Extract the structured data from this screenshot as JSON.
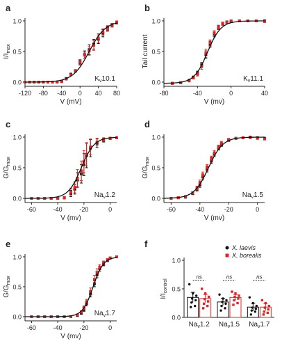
{
  "colors": {
    "black": "#111111",
    "red": "#d62828",
    "axis": "#222222"
  },
  "chart_data": [
    {
      "panel": "a",
      "type": "scatter",
      "title": "Kᵥ 10.1",
      "label_main": "K",
      "label_sub": "v",
      "label_rest": "10.1",
      "xlabel": "V (mV)",
      "ylabel": "I/I",
      "ylabel_sub": "max",
      "xlim": [
        -120,
        80
      ],
      "ylim": [
        0,
        1.0
      ],
      "xticks": [
        "-120",
        "-80",
        "-40",
        "0",
        "40",
        "80"
      ],
      "xtick_values": [
        -120,
        -80,
        -40,
        0,
        40,
        80
      ],
      "yticks": [
        "0.0",
        "0.5",
        "1.0"
      ],
      "ytick_values": [
        0,
        0.5,
        1.0
      ],
      "curve": {
        "type": "boltzmann",
        "v_half": 20,
        "k": 18,
        "bottom": 0,
        "top": 1
      },
      "series": [
        {
          "color": "black",
          "x": [
            -120,
            -110,
            -100,
            -90,
            -80,
            -70,
            -60,
            -50,
            -40,
            -30,
            -20,
            -10,
            0,
            10,
            20,
            30,
            40,
            50,
            60,
            70,
            80
          ],
          "y": [
            0,
            0,
            0,
            0,
            0,
            0,
            0,
            0,
            0.01,
            0.06,
            0.13,
            0.18,
            0.32,
            0.45,
            0.53,
            0.62,
            0.7,
            0.8,
            0.88,
            0.93,
            0.97
          ],
          "err": [
            0,
            0,
            0,
            0,
            0,
            0,
            0,
            0,
            0,
            0,
            0,
            0,
            0.04,
            0.06,
            0.08,
            0.08,
            0.07,
            0.06,
            0.04,
            0.03,
            0.02
          ]
        },
        {
          "color": "red",
          "x": [
            -120,
            -110,
            -100,
            -90,
            -80,
            -70,
            -60,
            -50,
            -40,
            -30,
            -20,
            -10,
            0,
            10,
            20,
            30,
            40,
            50,
            60,
            70,
            80
          ],
          "y": [
            0,
            0,
            0,
            0,
            0,
            0,
            0,
            0,
            0.01,
            0.05,
            0.12,
            0.19,
            0.33,
            0.44,
            0.51,
            0.6,
            0.72,
            0.82,
            0.87,
            0.93,
            0.98
          ],
          "err": [
            0,
            0,
            0,
            0,
            0,
            0,
            0,
            0,
            0,
            0,
            0,
            0,
            0.04,
            0.05,
            0.07,
            0.08,
            0.07,
            0.05,
            0.04,
            0.03,
            0.02
          ]
        }
      ]
    },
    {
      "panel": "b",
      "type": "scatter",
      "label_main": "K",
      "label_sub": "v",
      "label_rest": "11.1",
      "xlabel": "V (mv)",
      "ylabel": "Tail current",
      "ylabel_sub": "",
      "xlim": [
        -80,
        40
      ],
      "ylim": [
        0,
        1.0
      ],
      "xticks": [
        "-80",
        "-40",
        "0",
        "40"
      ],
      "xtick_values": [
        -80,
        -40,
        0,
        40
      ],
      "yticks": [
        "0.0",
        "0.5",
        "1.0"
      ],
      "ytick_values": [
        0,
        0.5,
        1.0
      ],
      "curve": {
        "type": "boltzmann",
        "v_half": -28,
        "k": 8,
        "bottom": -0.02,
        "top": 1
      },
      "series": [
        {
          "color": "black",
          "x": [
            -70,
            -60,
            -50,
            -45,
            -40,
            -35,
            -30,
            -25,
            -20,
            -15,
            -10,
            -5,
            0,
            10,
            20,
            30,
            40
          ],
          "y": [
            -0.02,
            -0.01,
            0.03,
            0.08,
            0.15,
            0.28,
            0.45,
            0.62,
            0.78,
            0.89,
            0.95,
            0.98,
            0.99,
            1.0,
            1.0,
            1.0,
            1.0
          ],
          "err": [
            0.01,
            0.01,
            0.01,
            0.02,
            0.03,
            0.04,
            0.06,
            0.05,
            0.04,
            0.03,
            0.02,
            0.02,
            0.01,
            0.01,
            0,
            0,
            0
          ]
        },
        {
          "color": "red",
          "x": [
            -70,
            -60,
            -50,
            -45,
            -40,
            -35,
            -30,
            -25,
            -20,
            -15,
            -10,
            -5,
            0,
            10,
            20,
            30,
            40
          ],
          "y": [
            -0.02,
            -0.01,
            0.02,
            0.07,
            0.13,
            0.26,
            0.47,
            0.64,
            0.8,
            0.9,
            0.96,
            0.98,
            1.0,
            1.0,
            1.0,
            1.0,
            0.99
          ],
          "err": [
            0.01,
            0.01,
            0.01,
            0.02,
            0.03,
            0.05,
            0.07,
            0.05,
            0.04,
            0.03,
            0.02,
            0.01,
            0.01,
            0.01,
            0,
            0,
            0
          ]
        }
      ]
    },
    {
      "panel": "c",
      "type": "scatter",
      "label_main": "Na",
      "label_sub": "v",
      "label_rest": "1.2",
      "xlabel": "V (mv)",
      "ylabel": "G/G",
      "ylabel_sub": "max",
      "xlim": [
        -65,
        5
      ],
      "ylim": [
        0,
        1.0
      ],
      "xticks": [
        "-60",
        "-40",
        "-20",
        "0"
      ],
      "xtick_values": [
        -60,
        -40,
        -20,
        0
      ],
      "yticks": [
        "0.0",
        "0.5",
        "1.0"
      ],
      "ytick_values": [
        0,
        0.5,
        1.0
      ],
      "curve": {
        "type": "boltzmann",
        "v_half": -22,
        "k": 5,
        "bottom": 0,
        "top": 1
      },
      "series": [
        {
          "color": "black",
          "x": [
            -60,
            -55,
            -50,
            -45,
            -40,
            -35,
            -30,
            -27,
            -25,
            -22,
            -20,
            -18,
            -15,
            -10,
            -5,
            0,
            5
          ],
          "y": [
            0,
            0,
            0,
            0,
            0,
            0.01,
            0.08,
            0.15,
            0.3,
            0.4,
            0.55,
            0.7,
            0.82,
            0.9,
            0.95,
            0.98,
            0.99
          ],
          "err": [
            0,
            0,
            0,
            0,
            0,
            0.02,
            0.05,
            0.08,
            0.12,
            0.15,
            0.18,
            0.2,
            0.14,
            0.07,
            0.03,
            0.02,
            0.01
          ]
        },
        {
          "color": "red",
          "x": [
            -60,
            -55,
            -50,
            -45,
            -40,
            -35,
            -30,
            -27,
            -25,
            -22,
            -20,
            -18,
            -15,
            -10,
            -5,
            0,
            5
          ],
          "y": [
            0,
            0,
            0,
            0,
            0,
            0.01,
            0.1,
            0.18,
            0.33,
            0.45,
            0.6,
            0.72,
            0.84,
            0.92,
            0.96,
            0.98,
            0.99
          ],
          "err": [
            0,
            0,
            0,
            0,
            0,
            0.02,
            0.06,
            0.09,
            0.14,
            0.16,
            0.18,
            0.19,
            0.13,
            0.06,
            0.03,
            0.02,
            0.01
          ]
        }
      ]
    },
    {
      "panel": "d",
      "type": "scatter",
      "label_main": "Na",
      "label_sub": "v",
      "label_rest": "1.5",
      "xlabel": "V (mv)",
      "ylabel": "G/G",
      "ylabel_sub": "max",
      "xlim": [
        -65,
        5
      ],
      "ylim": [
        0,
        1.0
      ],
      "xticks": [
        "-60",
        "-40",
        "-20",
        "0"
      ],
      "xtick_values": [
        -60,
        -40,
        -20,
        0
      ],
      "yticks": [
        "0.0",
        "0.5",
        "1.0"
      ],
      "ytick_values": [
        0,
        0.5,
        1.0
      ],
      "curve": {
        "type": "boltzmann",
        "v_half": -34,
        "k": 5,
        "bottom": 0,
        "top": 1
      },
      "series": [
        {
          "color": "black",
          "x": [
            -60,
            -55,
            -50,
            -45,
            -42,
            -40,
            -38,
            -35,
            -32,
            -30,
            -27,
            -25,
            -20,
            -15,
            -10,
            -5,
            0,
            5
          ],
          "y": [
            0,
            0.01,
            0.02,
            0.08,
            0.15,
            0.22,
            0.35,
            0.48,
            0.62,
            0.72,
            0.82,
            0.88,
            0.95,
            0.98,
            0.99,
            1.0,
            0.99,
            0.98
          ],
          "err": [
            0,
            0.01,
            0.01,
            0.02,
            0.03,
            0.04,
            0.05,
            0.05,
            0.05,
            0.04,
            0.03,
            0.03,
            0.02,
            0.01,
            0.01,
            0,
            0.01,
            0.01
          ]
        },
        {
          "color": "red",
          "x": [
            -60,
            -55,
            -50,
            -45,
            -42,
            -40,
            -38,
            -35,
            -32,
            -30,
            -27,
            -25,
            -20,
            -15,
            -10,
            -5,
            0,
            5
          ],
          "y": [
            0,
            0.01,
            0.03,
            0.09,
            0.17,
            0.26,
            0.38,
            0.5,
            0.64,
            0.74,
            0.84,
            0.9,
            0.96,
            0.98,
            0.99,
            0.99,
            0.98,
            0.97
          ],
          "err": [
            0,
            0.01,
            0.01,
            0.02,
            0.03,
            0.04,
            0.05,
            0.05,
            0.05,
            0.04,
            0.03,
            0.03,
            0.02,
            0.01,
            0.01,
            0,
            0.01,
            0.01
          ]
        }
      ]
    },
    {
      "panel": "e",
      "type": "scatter",
      "label_main": "Na",
      "label_sub": "v",
      "label_rest": "1.7",
      "xlabel": "V (mv)",
      "ylabel": "G/G",
      "ylabel_sub": "max",
      "xlim": [
        -65,
        5
      ],
      "ylim": [
        0,
        1.0
      ],
      "xticks": [
        "-60",
        "-40",
        "-20",
        "0"
      ],
      "xtick_values": [
        -60,
        -40,
        -20,
        0
      ],
      "yticks": [
        "0.0",
        "0.5",
        "1.0"
      ],
      "ytick_values": [
        0,
        0.5,
        1.0
      ],
      "curve": {
        "type": "boltzmann",
        "v_half": -13,
        "k": 4,
        "bottom": 0,
        "top": 1
      },
      "series": [
        {
          "color": "black",
          "x": [
            -60,
            -55,
            -50,
            -45,
            -40,
            -35,
            -30,
            -25,
            -22,
            -20,
            -18,
            -15,
            -12,
            -10,
            -8,
            -5,
            -2,
            0,
            5
          ],
          "y": [
            0,
            0,
            0,
            0,
            0,
            0,
            0,
            0.02,
            0.06,
            0.12,
            0.22,
            0.38,
            0.55,
            0.7,
            0.8,
            0.88,
            0.94,
            0.98,
            1.0
          ],
          "err": [
            0,
            0,
            0,
            0,
            0,
            0,
            0,
            0.01,
            0.02,
            0.03,
            0.04,
            0.05,
            0.05,
            0.05,
            0.04,
            0.03,
            0.02,
            0.01,
            0.01
          ]
        },
        {
          "color": "red",
          "x": [
            -60,
            -55,
            -50,
            -45,
            -40,
            -35,
            -30,
            -25,
            -22,
            -20,
            -18,
            -15,
            -12,
            -10,
            -8,
            -5,
            -2,
            0,
            5
          ],
          "y": [
            0,
            0,
            0,
            0,
            0,
            0,
            0,
            0.03,
            0.08,
            0.15,
            0.25,
            0.42,
            0.62,
            0.74,
            0.83,
            0.9,
            0.95,
            0.98,
            1.0
          ],
          "err": [
            0,
            0,
            0,
            0,
            0,
            0,
            0,
            0.01,
            0.02,
            0.03,
            0.04,
            0.06,
            0.07,
            0.06,
            0.04,
            0.03,
            0.02,
            0.01,
            0.01
          ]
        }
      ]
    },
    {
      "panel": "f",
      "type": "bar",
      "ylabel": "I/I",
      "ylabel_sub": "control",
      "ylim": [
        0,
        1.0
      ],
      "yticks": [
        "0.0",
        "0.5",
        "1.0"
      ],
      "ytick_values": [
        0,
        0.5,
        1.0
      ],
      "categories": [
        {
          "main": "Na",
          "sub": "v",
          "rest": "1.2"
        },
        {
          "main": "Na",
          "sub": "v",
          "rest": "1.5"
        },
        {
          "main": "Na",
          "sub": "v",
          "rest": "1.7"
        }
      ],
      "legend": [
        {
          "label": "X. laevis",
          "color": "black"
        },
        {
          "label": "X. borealis",
          "color": "red"
        }
      ],
      "significance": [
        "ns",
        "ns",
        "ns"
      ],
      "series": [
        {
          "name": "X. laevis",
          "color": "black",
          "values": [
            0.35,
            0.27,
            0.18
          ],
          "err": [
            0.09,
            0.06,
            0.07
          ],
          "points": [
            [
              0.58,
              0.42,
              0.38,
              0.33,
              0.3,
              0.26,
              0.2,
              0.18
            ],
            [
              0.4,
              0.33,
              0.3,
              0.27,
              0.24,
              0.2,
              0.16,
              0.12
            ],
            [
              0.35,
              0.25,
              0.2,
              0.17,
              0.15,
              0.12,
              0.1,
              0.05
            ]
          ]
        },
        {
          "name": "X. borealis",
          "color": "red",
          "values": [
            0.33,
            0.35,
            0.18
          ],
          "err": [
            0.07,
            0.05,
            0.06
          ],
          "points": [
            [
              0.5,
              0.42,
              0.36,
              0.32,
              0.28,
              0.24,
              0.2,
              0.16
            ],
            [
              0.45,
              0.42,
              0.38,
              0.36,
              0.33,
              0.3,
              0.25,
              0.22
            ],
            [
              0.3,
              0.25,
              0.2,
              0.17,
              0.14,
              0.1,
              0.08,
              0.05
            ]
          ]
        }
      ]
    }
  ]
}
